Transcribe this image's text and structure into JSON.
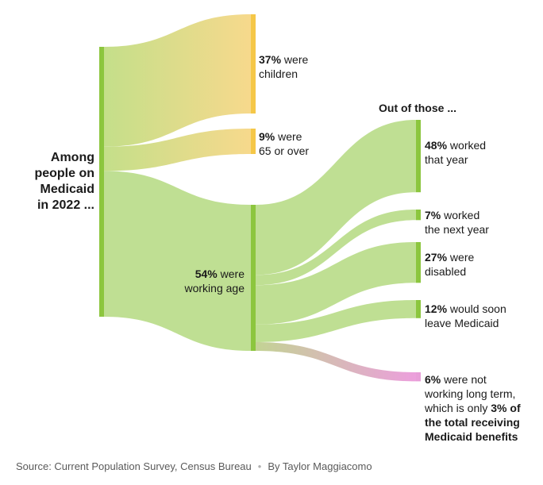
{
  "chart_data": {
    "type": "sankey",
    "root_label": "Among people on Medicaid in 2022 ...",
    "root_lines": [
      "Among",
      "people on",
      "Medicaid",
      "in 2022 ..."
    ],
    "level1": [
      {
        "id": "children",
        "value": 37,
        "pct": "37%",
        "text": " were",
        "text2": "children",
        "color": "#f5d886"
      },
      {
        "id": "seniors",
        "value": 9,
        "pct": "9%",
        "text": " were",
        "text2": "65 or over",
        "color": "#f5d886"
      },
      {
        "id": "working-age",
        "value": 54,
        "pct": "54%",
        "text": " were",
        "text2": "working age",
        "color": "#b9dc8c"
      }
    ],
    "level2_header": "Out of those ...",
    "level2": [
      {
        "id": "worked-that-year",
        "value": 48,
        "pct": "48%",
        "text": " worked",
        "text2": "that year",
        "color": "#b9dc8c"
      },
      {
        "id": "worked-next-year",
        "value": 7,
        "pct": "7%",
        "text": " worked",
        "text2": "the next year",
        "color": "#b9dc8c"
      },
      {
        "id": "disabled",
        "value": 27,
        "pct": "27%",
        "text": " were",
        "text2": "disabled",
        "color": "#b9dc8c"
      },
      {
        "id": "leave-medicaid",
        "value": 12,
        "pct": "12%",
        "text": " would soon",
        "text2": "leave Medicaid",
        "color": "#b9dc8c"
      },
      {
        "id": "not-working",
        "value": 6,
        "pct": "6%",
        "text": " were not",
        "text2": "working long term,",
        "text3": "which is only ",
        "bold3": "3% of",
        "bold4": "the total receiving",
        "bold5": "Medicaid benefits",
        "color": "#e8a0d8"
      }
    ],
    "node_color": "#8cc63e",
    "pink_node_color": "#e89ed8",
    "children_node_color": "#f5c748"
  },
  "footer": {
    "source": "Source: Current Population Survey, Census Bureau",
    "byline": "By Taylor Maggiacomo"
  }
}
